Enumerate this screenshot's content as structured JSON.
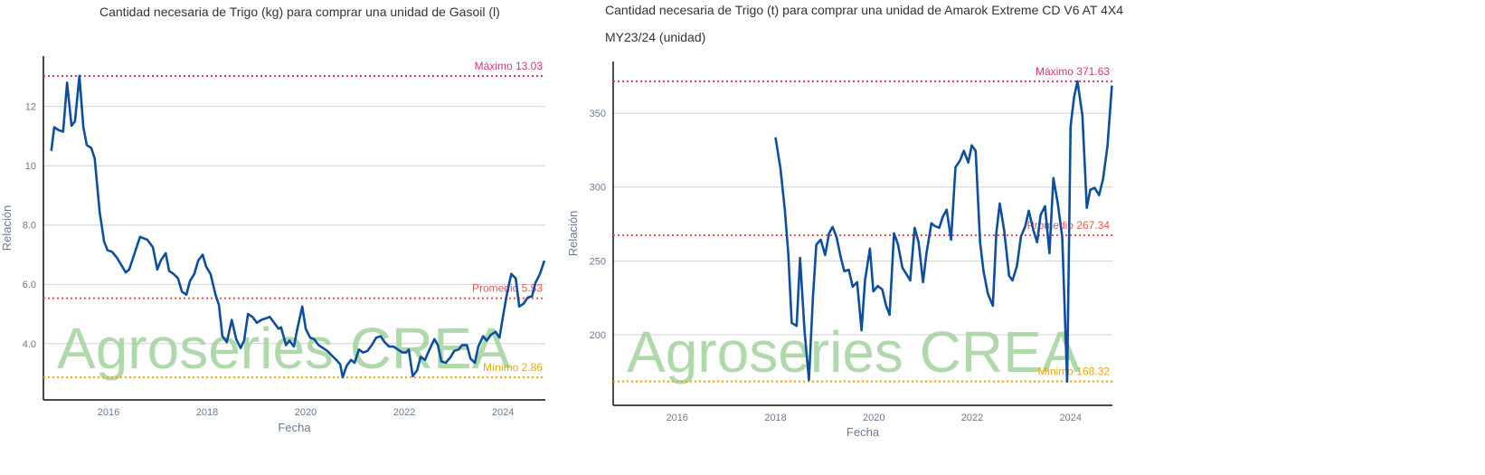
{
  "chart_data": [
    {
      "type": "line",
      "title": "Cantidad necesaria de Trigo (kg) para comprar una unidad de Gasoil (l)",
      "x_label": "Fecha",
      "y_label": "Relación",
      "watermark": "Agroseries CREA",
      "color": "#0d4f9e",
      "x": [
        2014.84,
        2014.9,
        2014.99,
        2015.08,
        2015.16,
        2015.25,
        2015.32,
        2015.41,
        2015.49,
        2015.56,
        2015.65,
        2015.72,
        2015.82,
        2015.91,
        2015.98,
        2016.07,
        2016.17,
        2016.26,
        2016.35,
        2016.42,
        2016.51,
        2016.64,
        2016.79,
        2016.9,
        2016.99,
        2017.06,
        2017.16,
        2017.23,
        2017.32,
        2017.41,
        2017.49,
        2017.58,
        2017.65,
        2017.74,
        2017.82,
        2017.91,
        2017.98,
        2018.07,
        2018.17,
        2018.24,
        2018.31,
        2018.4,
        2018.5,
        2018.59,
        2018.68,
        2018.75,
        2018.83,
        2018.92,
        2019.01,
        2019.1,
        2019.19,
        2019.27,
        2019.36,
        2019.45,
        2019.5,
        2019.6,
        2019.67,
        2019.76,
        2019.83,
        2019.93,
        2020.0,
        2020.09,
        2020.17,
        2020.26,
        2020.35,
        2020.44,
        2020.53,
        2020.62,
        2020.7,
        2020.75,
        2020.83,
        2020.92,
        2020.99,
        2021.08,
        2021.16,
        2021.25,
        2021.34,
        2021.43,
        2021.52,
        2021.6,
        2021.69,
        2021.78,
        2021.87,
        2021.96,
        2022.04,
        2022.09,
        2022.17,
        2022.26,
        2022.33,
        2022.42,
        2022.51,
        2022.61,
        2022.68,
        2022.75,
        2022.84,
        2022.94,
        2023.01,
        2023.1,
        2023.17,
        2023.27,
        2023.34,
        2023.43,
        2023.5,
        2023.6,
        2023.67,
        2023.76,
        2023.85,
        2023.93,
        2024.02,
        2024.09,
        2024.17,
        2024.26,
        2024.33,
        2024.42,
        2024.5,
        2024.59,
        2024.66,
        2024.75,
        2024.84
      ],
      "values": [
        10.5,
        11.3,
        11.2,
        11.15,
        12.8,
        11.35,
        11.5,
        13.03,
        11.3,
        10.7,
        10.6,
        10.25,
        8.45,
        7.45,
        7.15,
        7.1,
        6.9,
        6.65,
        6.4,
        6.5,
        6.95,
        7.6,
        7.5,
        7.25,
        6.5,
        6.8,
        7.05,
        6.45,
        6.35,
        6.2,
        5.75,
        5.65,
        6.1,
        6.35,
        6.8,
        7.0,
        6.6,
        6.35,
        5.65,
        5.3,
        4.25,
        4.05,
        4.8,
        4.15,
        3.85,
        4.1,
        5.0,
        4.9,
        4.7,
        4.8,
        4.85,
        4.9,
        4.7,
        4.5,
        4.55,
        3.95,
        4.1,
        3.9,
        4.5,
        5.25,
        4.5,
        4.2,
        4.15,
        3.95,
        3.85,
        3.75,
        3.6,
        3.45,
        3.3,
        2.86,
        3.25,
        3.45,
        3.35,
        3.8,
        3.7,
        3.75,
        3.95,
        4.2,
        4.25,
        4.05,
        3.9,
        3.9,
        3.8,
        3.7,
        3.7,
        3.8,
        2.9,
        3.1,
        3.55,
        3.45,
        3.8,
        4.15,
        3.95,
        3.4,
        3.35,
        3.55,
        3.75,
        3.8,
        3.95,
        3.95,
        3.5,
        3.35,
        3.9,
        4.25,
        4.1,
        4.3,
        4.4,
        4.2,
        5.1,
        5.75,
        6.35,
        6.2,
        5.25,
        5.35,
        5.55,
        5.6,
        6.05,
        6.35,
        6.8
      ],
      "xlim": [
        2014.68,
        2024.86
      ],
      "xticks": [
        2016,
        2018,
        2020,
        2022,
        2024
      ],
      "ylim": [
        2.1,
        13.7
      ],
      "yticks": [
        {
          "value": 4,
          "label": "4.0"
        },
        {
          "value": 6,
          "label": "6.0"
        },
        {
          "value": 8,
          "label": "8.0"
        },
        10,
        12
      ],
      "grid": true,
      "reference_lines": [
        {
          "label": "Máximo 13.03",
          "value": 13.03,
          "color": "#e0307a"
        },
        {
          "label": "Promedio 5.53",
          "value": 5.53,
          "color": "#ef5350"
        },
        {
          "label": "Mínimo 2.86",
          "value": 2.86,
          "color": "#f0a500"
        }
      ]
    },
    {
      "type": "line",
      "title": "Cantidad necesaria de Trigo (t) para comprar una unidad de Amarok Extreme CD V6 AT 4X4 MY23/24 (unidad)",
      "x_label": "Fecha",
      "y_label": "Relación",
      "watermark": "Agroseries CREA",
      "color": "#0d4f9e",
      "x": [
        2018.0,
        2018.1,
        2018.19,
        2018.26,
        2018.33,
        2018.43,
        2018.5,
        2018.59,
        2018.68,
        2018.76,
        2018.83,
        2018.92,
        2019.01,
        2019.09,
        2019.16,
        2019.24,
        2019.33,
        2019.4,
        2019.49,
        2019.57,
        2019.66,
        2019.75,
        2019.82,
        2019.92,
        2019.99,
        2020.08,
        2020.17,
        2020.25,
        2020.32,
        2020.41,
        2020.49,
        2020.58,
        2020.65,
        2020.74,
        2020.83,
        2020.91,
        2021.0,
        2021.07,
        2021.17,
        2021.24,
        2021.33,
        2021.4,
        2021.48,
        2021.57,
        2021.66,
        2021.75,
        2021.83,
        2021.92,
        2021.99,
        2022.07,
        2022.16,
        2022.23,
        2022.32,
        2022.42,
        2022.49,
        2022.56,
        2022.65,
        2022.75,
        2022.82,
        2022.91,
        2022.99,
        2023.08,
        2023.15,
        2023.24,
        2023.32,
        2023.39,
        2023.48,
        2023.57,
        2023.65,
        2023.74,
        2023.83,
        2023.93,
        2024.0,
        2024.07,
        2024.14,
        2024.24,
        2024.33,
        2024.4,
        2024.49,
        2024.58,
        2024.66,
        2024.75,
        2024.84
      ],
      "values": [
        333.7,
        312.9,
        284.7,
        255,
        208,
        206,
        252,
        203,
        169.3,
        224.5,
        261,
        264.4,
        254,
        268.7,
        273,
        266.3,
        252,
        243,
        244,
        232.5,
        235.6,
        203,
        236.8,
        258.3,
        229.4,
        233,
        230.7,
        219.6,
        213.5,
        268.7,
        261.3,
        245.4,
        241.7,
        236.8,
        272.4,
        262.6,
        235.6,
        255.2,
        275.5,
        273.6,
        272.4,
        279.8,
        284.7,
        264.4,
        313.5,
        317.8,
        324.5,
        316.6,
        328.2,
        324.5,
        262.6,
        243,
        227.6,
        219.6,
        268.7,
        288.9,
        270.6,
        239.9,
        236.8,
        246.6,
        266.3,
        273.6,
        284,
        271.2,
        262.6,
        281,
        287.1,
        255.2,
        306.1,
        288.9,
        266.3,
        168.32,
        341.1,
        360.7,
        371.63,
        348.5,
        285.9,
        298.2,
        299.4,
        294.5,
        305.5,
        327.6,
        368.7
      ],
      "xlim": [
        2014.7,
        2024.85
      ],
      "xticks": [
        2016,
        2018,
        2020,
        2022,
        2024
      ],
      "ylim": [
        152.2,
        385
      ],
      "yticks": [
        200,
        250,
        300,
        350
      ],
      "grid": true,
      "reference_lines": [
        {
          "label": "Máximo 371.63",
          "value": 371.63,
          "color": "#e0307a"
        },
        {
          "label": "Promedio 267.34",
          "value": 267.34,
          "color": "#ef5350"
        },
        {
          "label": "Mínimo 168.32",
          "value": 168.32,
          "color": "#f0a500"
        }
      ]
    }
  ]
}
